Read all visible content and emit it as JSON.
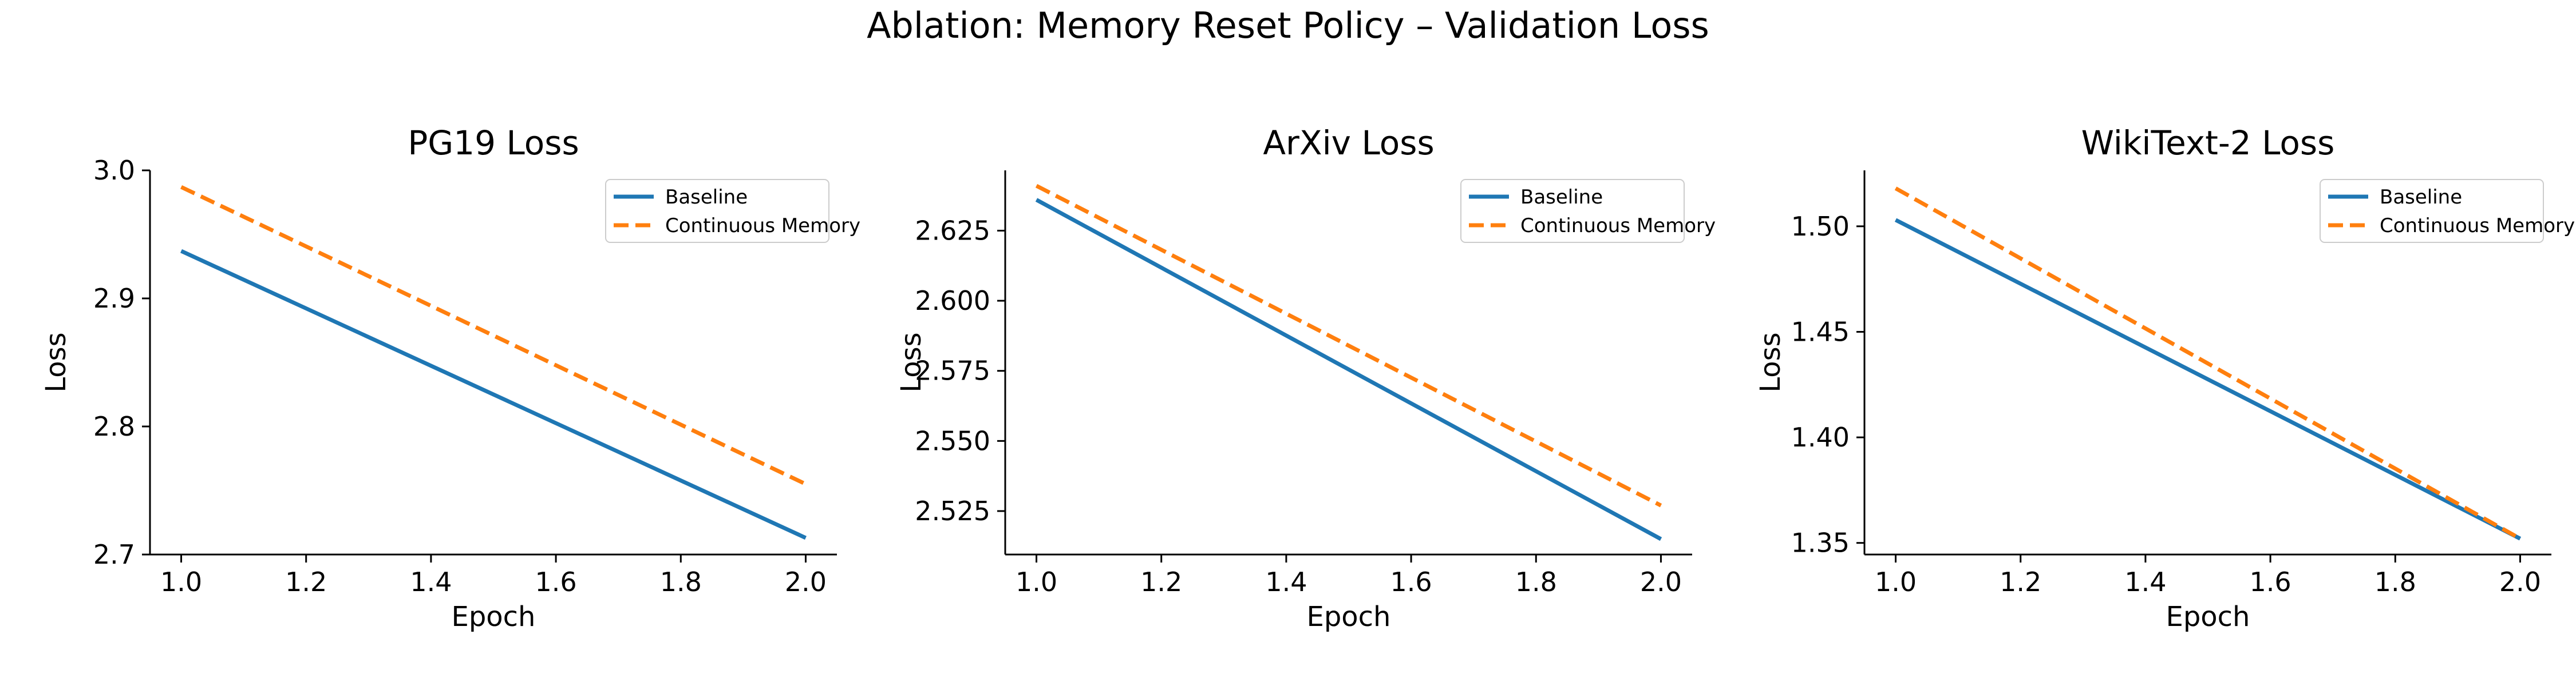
{
  "figure": {
    "suptitle": "Ablation: Memory Reset Policy – Validation Loss"
  },
  "colors": {
    "baseline": "#1f77b4",
    "continuous": "#ff7f0e",
    "axis": "#000000"
  },
  "chart_data": [
    {
      "type": "line",
      "title": "PG19 Loss",
      "xlabel": "Epoch",
      "ylabel": "Loss",
      "xlim": [
        0.95,
        2.05
      ],
      "ylim": [
        2.7,
        3.0
      ],
      "xticks": [
        1.0,
        1.2,
        1.4,
        1.6,
        1.8,
        2.0
      ],
      "xtick_labels": [
        "1.0",
        "1.2",
        "1.4",
        "1.6",
        "1.8",
        "2.0"
      ],
      "yticks": [
        2.7,
        2.8,
        2.9,
        3.0
      ],
      "ytick_labels": [
        "2.7",
        "2.8",
        "2.9",
        "3.0"
      ],
      "legend_loc": "upper right",
      "grid": false,
      "x": [
        1.0,
        2.0
      ],
      "series": [
        {
          "name": "Baseline",
          "values": [
            2.937,
            2.713
          ],
          "style": "solid",
          "color": "#1f77b4"
        },
        {
          "name": "Continuous Memory",
          "values": [
            2.987,
            2.755
          ],
          "style": "dashed",
          "color": "#ff7f0e"
        }
      ]
    },
    {
      "type": "line",
      "title": "ArXiv Loss",
      "xlabel": "Epoch",
      "ylabel": "Loss",
      "xlim": [
        0.95,
        2.05
      ],
      "ylim": [
        2.5095,
        2.6465
      ],
      "xticks": [
        1.0,
        1.2,
        1.4,
        1.6,
        1.8,
        2.0
      ],
      "xtick_labels": [
        "1.0",
        "1.2",
        "1.4",
        "1.6",
        "1.8",
        "2.0"
      ],
      "yticks": [
        2.525,
        2.55,
        2.575,
        2.6,
        2.625
      ],
      "ytick_labels": [
        "2.525",
        "2.550",
        "2.575",
        "2.600",
        "2.625"
      ],
      "legend_loc": "upper right",
      "grid": false,
      "x": [
        1.0,
        2.0
      ],
      "series": [
        {
          "name": "Baseline",
          "values": [
            2.636,
            2.515
          ],
          "style": "solid",
          "color": "#1f77b4"
        },
        {
          "name": "Continuous Memory",
          "values": [
            2.641,
            2.527
          ],
          "style": "dashed",
          "color": "#ff7f0e"
        }
      ]
    },
    {
      "type": "line",
      "title": "WikiText-2 Loss",
      "xlabel": "Epoch",
      "ylabel": "Loss",
      "xlim": [
        0.95,
        2.05
      ],
      "ylim": [
        1.3445,
        1.5265
      ],
      "xticks": [
        1.0,
        1.2,
        1.4,
        1.6,
        1.8,
        2.0
      ],
      "xtick_labels": [
        "1.0",
        "1.2",
        "1.4",
        "1.6",
        "1.8",
        "2.0"
      ],
      "yticks": [
        1.35,
        1.4,
        1.45,
        1.5
      ],
      "ytick_labels": [
        "1.35",
        "1.40",
        "1.45",
        "1.50"
      ],
      "legend_loc": "upper right",
      "grid": false,
      "x": [
        1.0,
        2.0
      ],
      "series": [
        {
          "name": "Baseline",
          "values": [
            1.503,
            1.352
          ],
          "style": "solid",
          "color": "#1f77b4"
        },
        {
          "name": "Continuous Memory",
          "values": [
            1.518,
            1.352
          ],
          "style": "dashed",
          "color": "#ff7f0e"
        }
      ]
    }
  ]
}
